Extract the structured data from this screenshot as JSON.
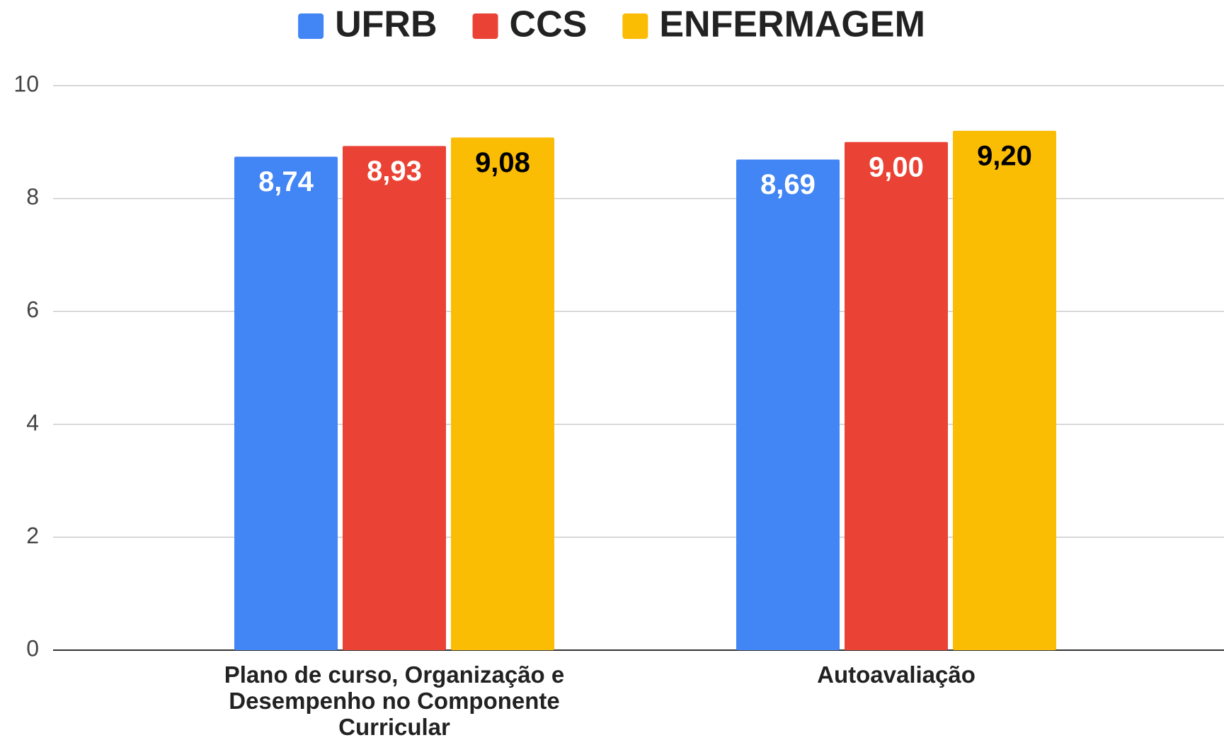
{
  "chart_data": {
    "type": "bar",
    "categories": [
      "Plano de curso, Organização e Desempenho no Componente Curricular",
      "Autoavaliação"
    ],
    "series": [
      {
        "name": "UFRB",
        "color": "#4285f4",
        "label_color": "#ffffff",
        "values": [
          8.74,
          8.69
        ],
        "value_labels": [
          "8,74",
          "8,69"
        ]
      },
      {
        "name": "CCS",
        "color": "#ea4335",
        "label_color": "#ffffff",
        "values": [
          8.93,
          9.0
        ],
        "value_labels": [
          "8,93",
          "9,00"
        ]
      },
      {
        "name": "ENFERMAGEM",
        "color": "#fbbc04",
        "label_color": "#000000",
        "values": [
          9.08,
          9.2
        ],
        "value_labels": [
          "9,08",
          "9,20"
        ]
      }
    ],
    "ylim": [
      0,
      10
    ],
    "yticks": [
      0,
      2,
      4,
      6,
      8,
      10
    ],
    "grid": true,
    "legend": "top"
  }
}
